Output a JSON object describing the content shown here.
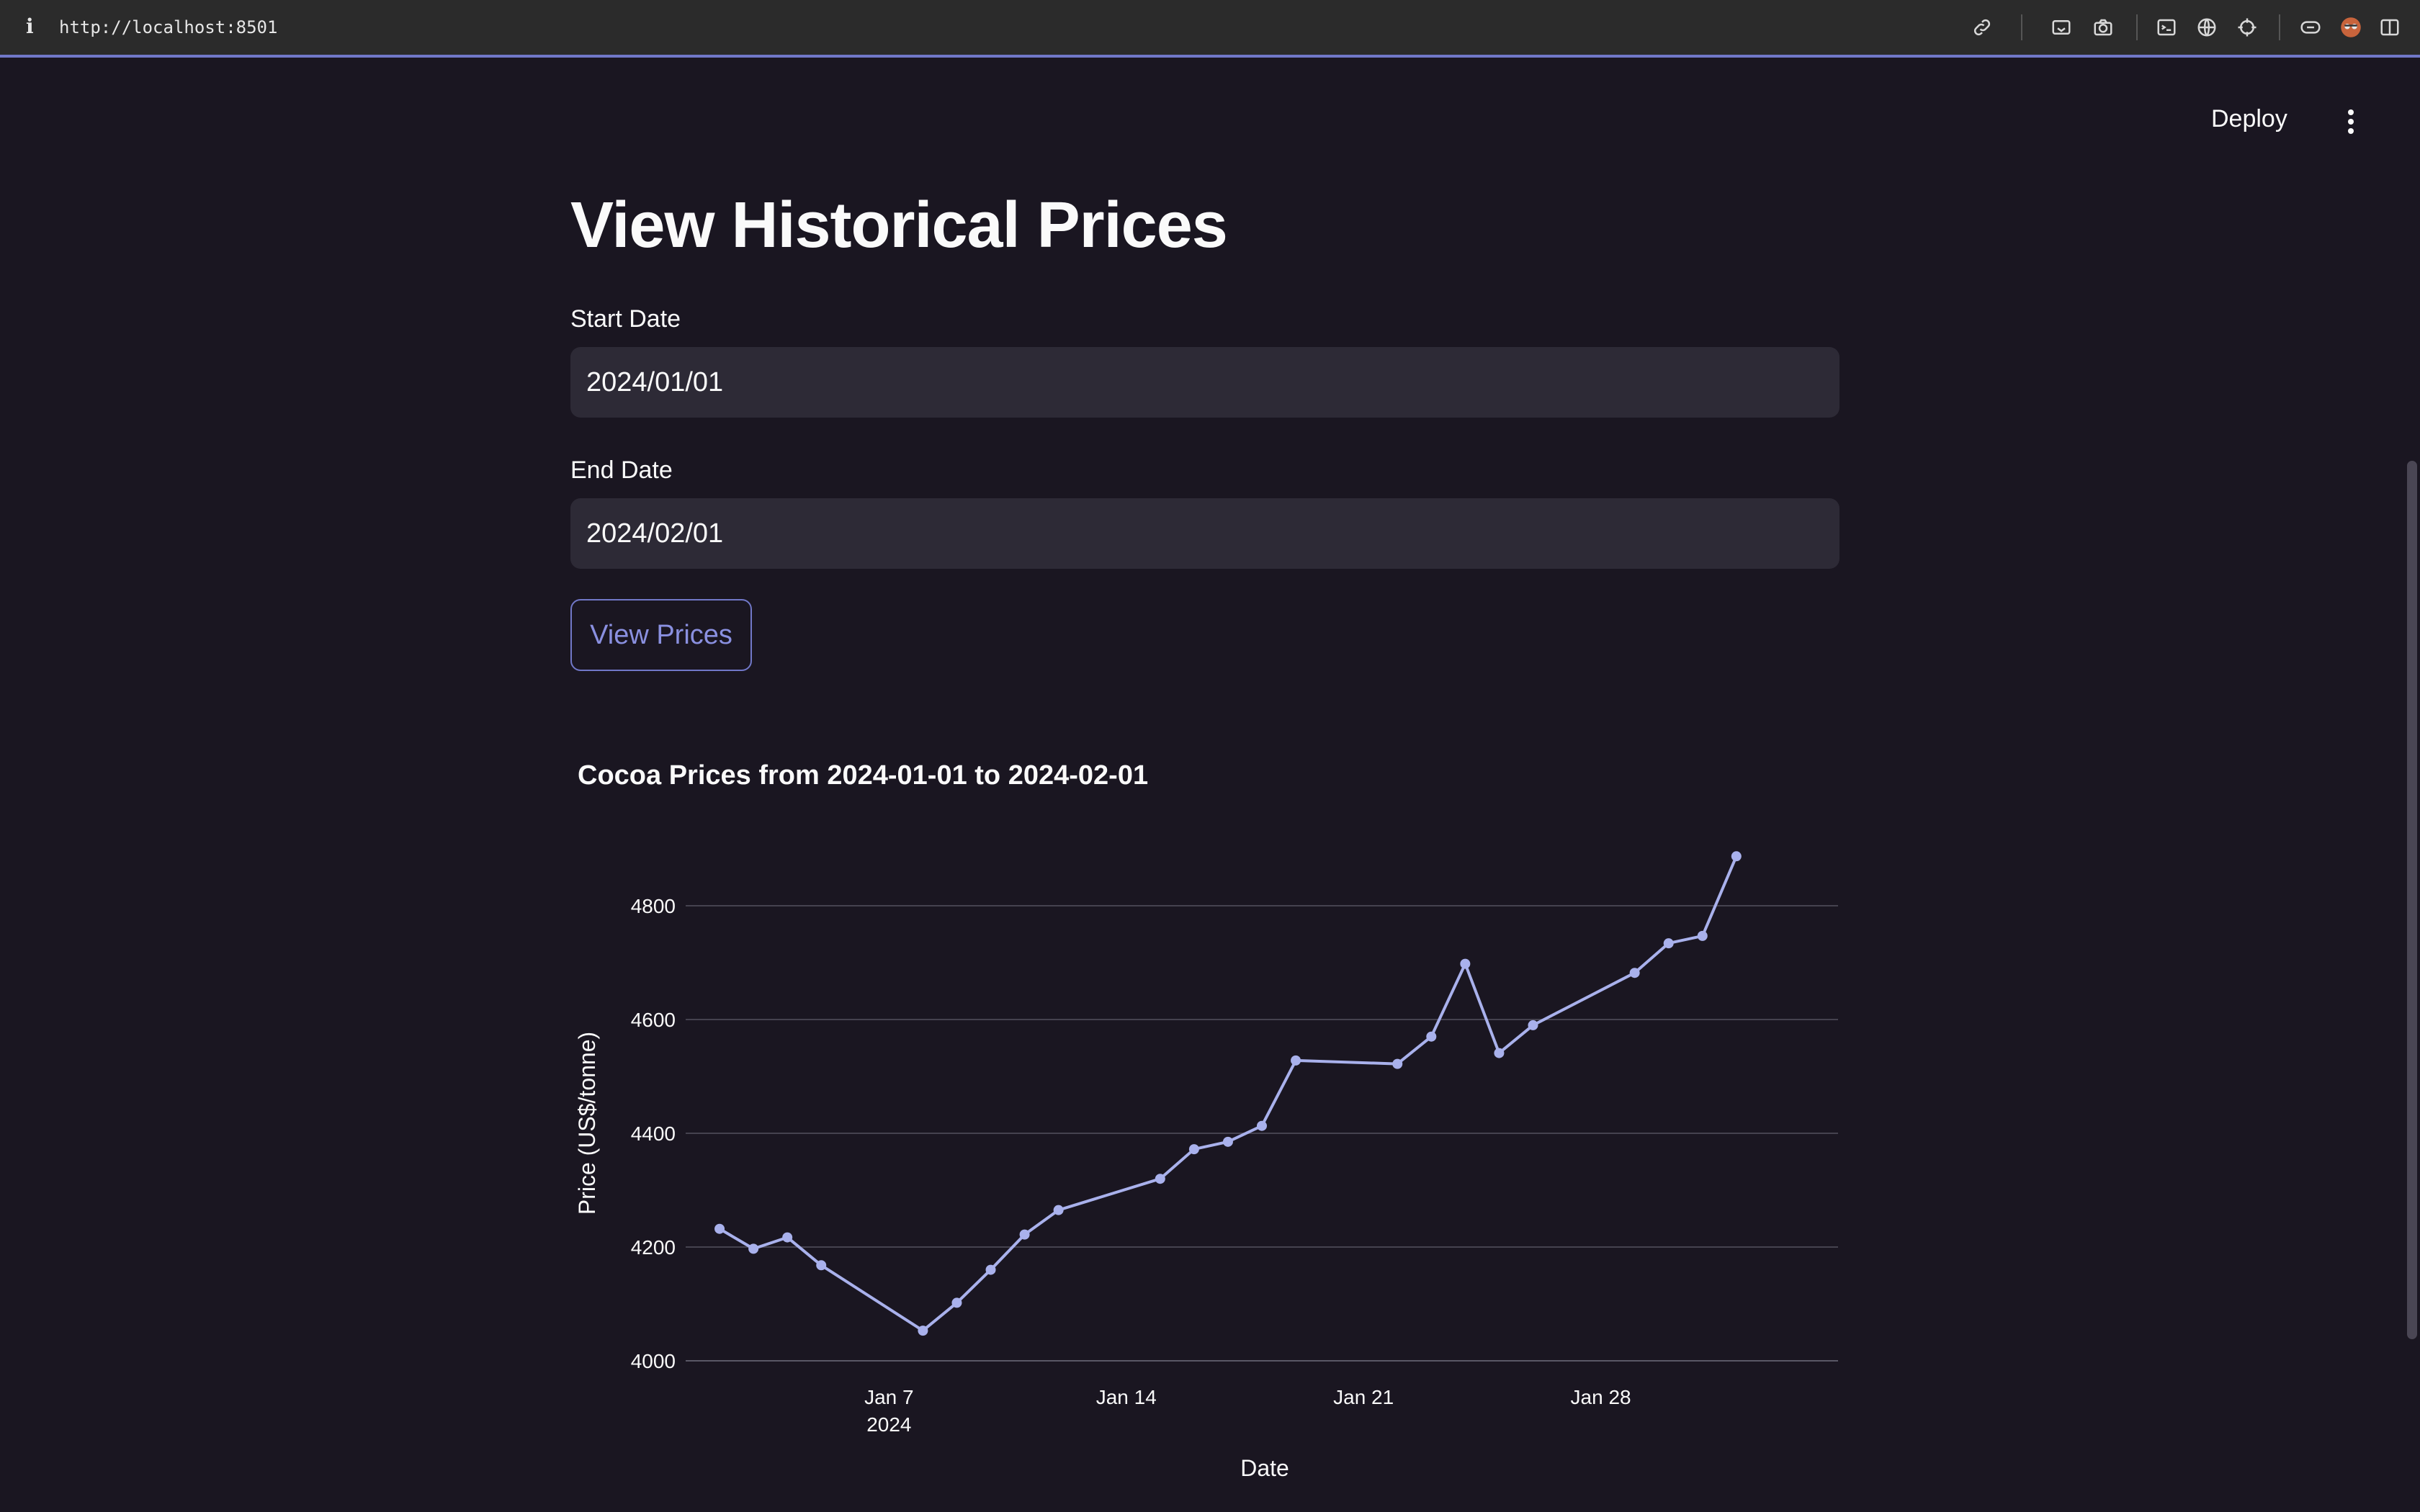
{
  "browser": {
    "url": "http://localhost:8501",
    "info_glyph": "i"
  },
  "header": {
    "deploy_label": "Deploy"
  },
  "page": {
    "title": "View Historical Prices",
    "start_label": "Start Date",
    "start_value": "2024/01/01",
    "end_label": "End Date",
    "end_value": "2024/02/01",
    "button_label": "View Prices"
  },
  "colors": {
    "accent": "#7178c8",
    "line": "#a9b1ec",
    "background": "#1a1621"
  },
  "chart_data": {
    "type": "line",
    "title": "Cocoa Prices from 2024-01-01 to 2024-02-01",
    "xlabel": "Date",
    "ylabel": "Price (US$/tonne)",
    "ylim": [
      4000,
      4800
    ],
    "xlim": [
      "2024-01-01",
      "2024-02-04"
    ],
    "yticks": [
      4000,
      4200,
      4400,
      4600,
      4800
    ],
    "xticks": [
      {
        "date": "2024-01-07",
        "label": "Jan 7",
        "sublabel": "2024"
      },
      {
        "date": "2024-01-14",
        "label": "Jan 14"
      },
      {
        "date": "2024-01-21",
        "label": "Jan 21"
      },
      {
        "date": "2024-01-28",
        "label": "Jan 28"
      }
    ],
    "grid": true,
    "series": [
      {
        "x": [
          "2024-01-02",
          "2024-01-03",
          "2024-01-04",
          "2024-01-05",
          "2024-01-08",
          "2024-01-09",
          "2024-01-10",
          "2024-01-11",
          "2024-01-12",
          "2024-01-15",
          "2024-01-16",
          "2024-01-17",
          "2024-01-18",
          "2024-01-19",
          "2024-01-22",
          "2024-01-23",
          "2024-01-24",
          "2024-01-25",
          "2024-01-26",
          "2024-01-29",
          "2024-01-30",
          "2024-01-31",
          "2024-02-01"
        ],
        "y": [
          4232,
          4197,
          4217,
          4168,
          4053,
          4102,
          4160,
          4222,
          4265,
          4320,
          4372,
          4385,
          4413,
          4528,
          4522,
          4570,
          4698,
          4541,
          4590,
          4682,
          4734,
          4747,
          4887
        ]
      }
    ]
  }
}
